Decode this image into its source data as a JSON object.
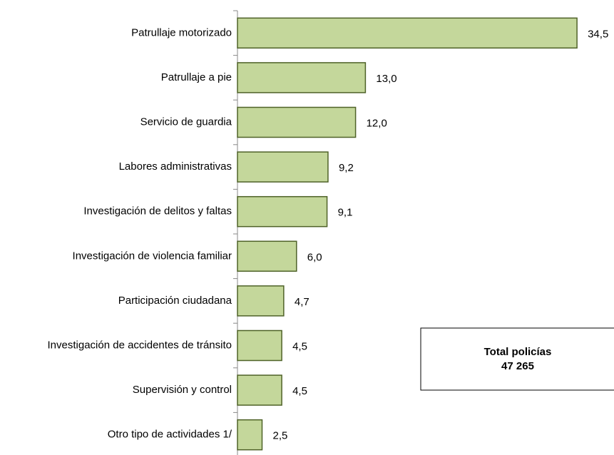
{
  "chart_data": {
    "type": "barh",
    "categories": [
      "Patrullaje motorizado",
      "Patrullaje a pie",
      "Servicio de guardia",
      "Labores administrativas",
      "Investigación de delitos y faltas",
      "Investigación de violencia familiar",
      "Participación ciudadana",
      "Investigación de accidentes de tránsito",
      "Supervisión y control",
      "Otro tipo de actividades 1/"
    ],
    "values": [
      34.5,
      13.0,
      12.0,
      9.2,
      9.1,
      6.0,
      4.7,
      4.5,
      4.5,
      2.5
    ],
    "value_labels": [
      "34,5",
      "13,0",
      "12,0",
      "9,2",
      "9,1",
      "6,0",
      "4,7",
      "4,5",
      "4,5",
      "2,5"
    ],
    "color": "#c4d79b",
    "edge_color": "#4f6228",
    "annotation": {
      "title": "Total policías",
      "value": "47 265"
    }
  }
}
